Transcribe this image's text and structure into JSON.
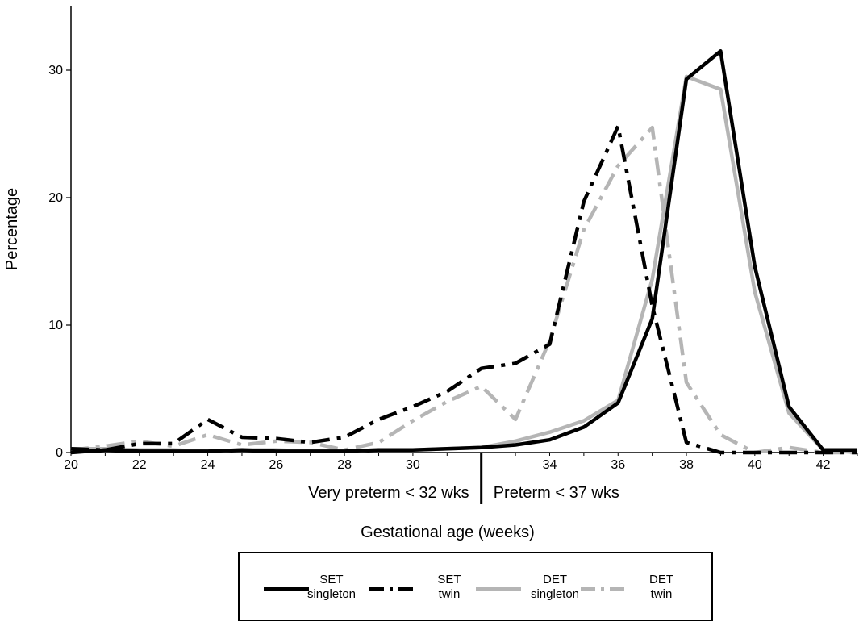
{
  "chart_data": {
    "type": "line",
    "title": "",
    "xlabel": "Gestational age (weeks)",
    "ylabel": "Percentage",
    "xlim": [
      20,
      43
    ],
    "ylim": [
      0,
      35
    ],
    "x_ticks": [
      20,
      22,
      24,
      26,
      28,
      30,
      34,
      36,
      38,
      40,
      42
    ],
    "y_ticks": [
      0,
      10,
      20,
      30
    ],
    "grid": false,
    "legend_position": "bottom",
    "region_divider_x": 32,
    "region_labels": {
      "left": "Very preterm < 32 wks",
      "right": "Preterm < 37 wks"
    },
    "series": [
      {
        "name_lines": [
          "SET",
          "singleton"
        ],
        "color": "#000000",
        "dash": "solid",
        "x": [
          20,
          21,
          22,
          23,
          24,
          25,
          26,
          27,
          28,
          29,
          30,
          31,
          32,
          33,
          34,
          35,
          36,
          37,
          38,
          39,
          40,
          41,
          42,
          43
        ],
        "values": [
          0.0,
          0.2,
          0.1,
          0.1,
          0.1,
          0.2,
          0.1,
          0.1,
          0.1,
          0.2,
          0.2,
          0.3,
          0.4,
          0.6,
          1.0,
          2.0,
          3.9,
          10.5,
          29.3,
          31.5,
          14.6,
          3.6,
          0.2,
          0.2
        ]
      },
      {
        "name_lines": [
          "SET",
          "twin"
        ],
        "color": "#000000",
        "dash": "dashdot",
        "x": [
          20,
          21,
          22,
          23,
          24,
          25,
          26,
          27,
          28,
          29,
          30,
          31,
          32,
          33,
          34,
          35,
          36,
          37,
          38,
          39,
          40,
          41,
          42,
          43
        ],
        "values": [
          0.3,
          0.2,
          0.7,
          0.7,
          2.6,
          1.2,
          1.1,
          0.8,
          1.2,
          2.6,
          3.6,
          4.8,
          6.6,
          7.0,
          8.5,
          19.7,
          25.6,
          11.5,
          0.8,
          0.0,
          0.0,
          0.0,
          0.0,
          0.0
        ]
      },
      {
        "name_lines": [
          "DET",
          "singleton"
        ],
        "color": "#b5b5b5",
        "dash": "solid",
        "x": [
          20,
          21,
          22,
          23,
          24,
          25,
          26,
          27,
          28,
          29,
          30,
          31,
          32,
          33,
          34,
          35,
          36,
          37,
          38,
          39,
          40,
          41,
          42,
          43
        ],
        "values": [
          0.3,
          0.3,
          0.2,
          0.2,
          0.1,
          0.2,
          0.2,
          0.1,
          0.1,
          0.2,
          0.2,
          0.3,
          0.4,
          0.9,
          1.6,
          2.5,
          4.1,
          13.6,
          29.5,
          28.5,
          12.6,
          3.1,
          0.2,
          0.0
        ]
      },
      {
        "name_lines": [
          "DET",
          "twin"
        ],
        "color": "#b5b5b5",
        "dash": "dashdot",
        "x": [
          20,
          21,
          22,
          23,
          24,
          25,
          26,
          27,
          28,
          29,
          30,
          31,
          32,
          33,
          34,
          35,
          36,
          37,
          38,
          39,
          40,
          41,
          42,
          43
        ],
        "values": [
          0.2,
          0.5,
          0.9,
          0.5,
          1.4,
          0.6,
          0.9,
          0.8,
          0.2,
          0.8,
          2.5,
          4.0,
          5.2,
          2.6,
          8.8,
          17.5,
          22.5,
          25.5,
          5.5,
          1.4,
          0.0,
          0.4,
          0.0,
          0.0
        ]
      }
    ]
  }
}
